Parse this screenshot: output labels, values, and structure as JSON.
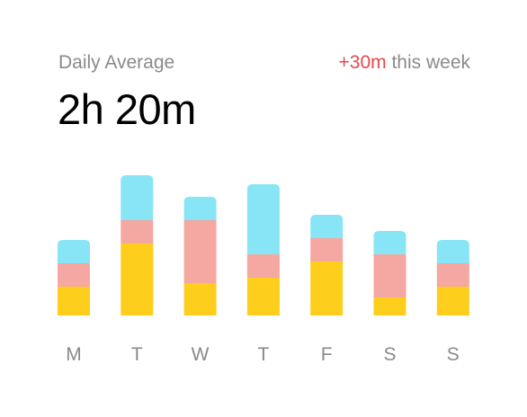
{
  "header": {
    "label": "Daily Average",
    "delta_value": "+30m",
    "delta_suffix": " this week",
    "total": "2h 20m"
  },
  "colors": {
    "top": "#87E5F5",
    "middle": "#F5A7A1",
    "bottom": "#FECE1C",
    "label": "#8a8a8a",
    "delta": "#e5484d"
  },
  "chart_data": {
    "type": "bar",
    "stacked": true,
    "categories": [
      "M",
      "T",
      "W",
      "T",
      "F",
      "S",
      "S"
    ],
    "series": [
      {
        "values": [
          32,
          80,
          36,
          42,
          60,
          20,
          32
        ]
      },
      {
        "values": [
          26,
          26,
          70,
          26,
          26,
          48,
          26
        ]
      },
      {
        "values": [
          26,
          50,
          26,
          78,
          26,
          26,
          26
        ]
      }
    ]
  }
}
